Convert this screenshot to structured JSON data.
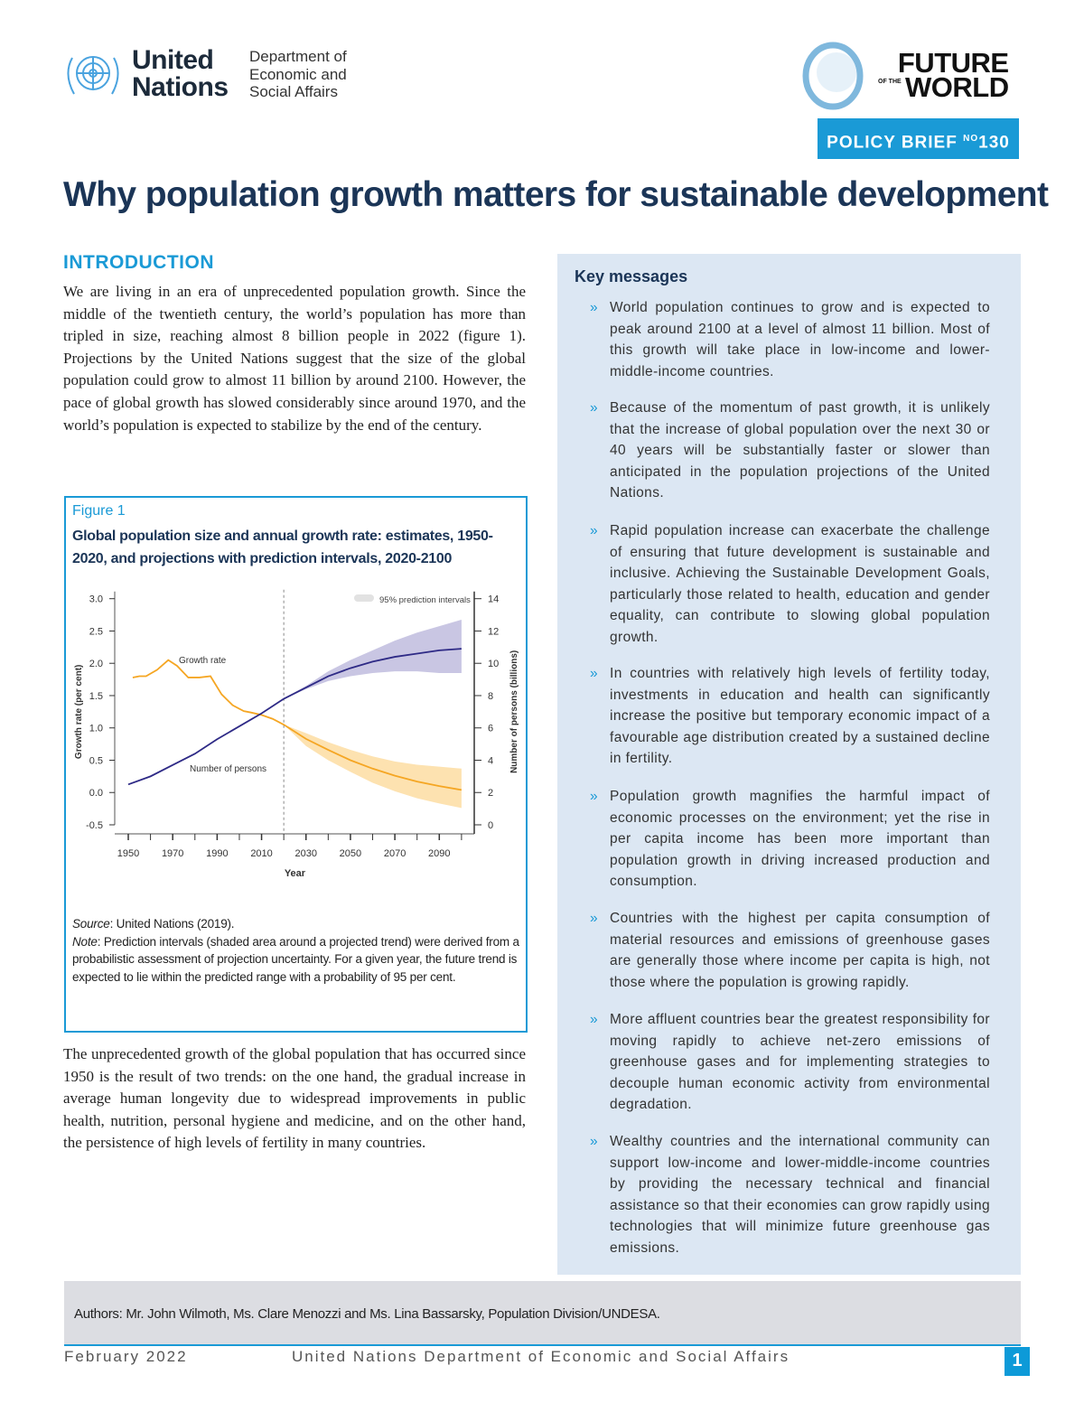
{
  "header": {
    "un_logo_text": [
      "United",
      "Nations"
    ],
    "department": [
      "Department of",
      "Economic and",
      "Social Affairs"
    ],
    "fow_logo": {
      "line1": "FUTURE",
      "of_the": "OF THE",
      "line2": "WORLD"
    },
    "policy_brief": {
      "label": "POLICY BRIEF",
      "no": "NO",
      "number": "130"
    },
    "brand_color": "#1a9ad6",
    "title_color": "#1b3557"
  },
  "title": "Why population growth matters for sustainable development",
  "introduction": {
    "heading": "INTRODUCTION",
    "paragraph1": "We are living in an era of unprecedented population growth. Since the middle of the twentieth century, the world’s population has more than tripled in size, reaching almost 8 billion people in 2022 (figure 1). Projections by the United Nations suggest that the size of the global population could grow to almost 11 billion by around 2100. However, the pace of global growth has slowed considerably since around 1970, and the world’s population is expected to stabilize by the end of the century.",
    "paragraph2": "The unprecedented growth of the global population that has occurred since 1950 is the result of two trends: on the one hand, the gradual increase in average human longevity due to widespread improvements in public health, nutrition, personal hygiene and medicine, and on the other hand, the persistence of high levels of fertility in many countries."
  },
  "figure": {
    "label": "Figure 1",
    "title": "Global population size and annual growth rate: estimates, 1950- 2020, and projections with prediction intervals, 2020-2100",
    "source_label": "Source",
    "source": ": United Nations (2019).",
    "note_label": "Note",
    "note": ": Prediction intervals (shaded area around a projected trend) were derived from a probabilistic assessment of projection uncertainty. For a given year, the future trend is expected to lie within the predicted range with a probability of 95 per cent."
  },
  "chart_data": {
    "type": "line",
    "xlabel": "Year",
    "ylabel_left": "Growth rate (per cent)",
    "ylabel_right": "Number of persons (billions)",
    "xlim": [
      1950,
      2100
    ],
    "ylim_left": [
      -0.5,
      3.0
    ],
    "ylim_right": [
      0,
      14
    ],
    "x_ticks": [
      1950,
      1970,
      1990,
      2010,
      2030,
      2050,
      2070,
      2090
    ],
    "y_ticks_left": [
      "3.0",
      "2.5",
      "2.0",
      "1.5",
      "1.0",
      "0.5",
      "0.0",
      "-0.5"
    ],
    "y_ticks_right": [
      14,
      12,
      10,
      8,
      6,
      4,
      2,
      0
    ],
    "projection_start": 2020,
    "legend": {
      "label": "95% prediction intervals",
      "position": "top-right"
    },
    "series": [
      {
        "name": "Growth rate",
        "axis": "left",
        "color": "#f5a623",
        "band_color": "#fde2b0",
        "x": [
          1952,
          1955,
          1958,
          1963,
          1968,
          1972,
          1977,
          1982,
          1987,
          1992,
          1997,
          2002,
          2005,
          2010,
          2015,
          2020,
          2030,
          2040,
          2050,
          2060,
          2070,
          2080,
          2090,
          2100
        ],
        "y": [
          1.78,
          1.8,
          1.8,
          1.9,
          2.05,
          1.96,
          1.78,
          1.78,
          1.8,
          1.52,
          1.35,
          1.26,
          1.24,
          1.2,
          1.14,
          1.05,
          0.83,
          0.66,
          0.5,
          0.37,
          0.26,
          0.17,
          0.1,
          0.04
        ],
        "interval": {
          "x": [
            2020,
            2030,
            2040,
            2050,
            2060,
            2070,
            2080,
            2090,
            2100
          ],
          "lower": [
            1.05,
            0.72,
            0.5,
            0.32,
            0.15,
            0.02,
            -0.09,
            -0.17,
            -0.24
          ],
          "upper": [
            1.05,
            0.92,
            0.78,
            0.66,
            0.56,
            0.48,
            0.43,
            0.4,
            0.37
          ]
        }
      },
      {
        "name": "Number of persons",
        "axis": "right",
        "color": "#2e2a86",
        "band_color": "#c9c6e3",
        "x": [
          1950,
          1960,
          1970,
          1980,
          1990,
          2000,
          2010,
          2020,
          2030,
          2040,
          2050,
          2060,
          2070,
          2080,
          2090,
          2100
        ],
        "y": [
          2.5,
          3.0,
          3.7,
          4.4,
          5.3,
          6.1,
          6.9,
          7.8,
          8.5,
          9.2,
          9.7,
          10.1,
          10.4,
          10.6,
          10.8,
          10.9
        ],
        "interval": {
          "x": [
            2020,
            2030,
            2040,
            2050,
            2060,
            2070,
            2080,
            2090,
            2100
          ],
          "lower": [
            7.8,
            8.4,
            8.9,
            9.2,
            9.4,
            9.5,
            9.5,
            9.4,
            9.4
          ],
          "upper": [
            7.8,
            8.6,
            9.5,
            10.2,
            10.8,
            11.4,
            11.9,
            12.3,
            12.7
          ]
        }
      }
    ]
  },
  "key_messages": {
    "heading": "Key messages",
    "bullet": "»",
    "items": [
      "World population continues to grow and is expected to peak around 2100 at a level of almost 11 billion. Most of this growth will take place in low-income and lower-middle-income countries.",
      "Because of the momentum of past growth, it is unlikely that the increase of global population over the next 30 or 40 years will be substantially faster or slower than anticipated in the population projections of the United Nations.",
      "Rapid population increase can exacerbate the challenge of ensuring that future development is sustainable and inclusive. Achieving the Sustainable Development Goals, particularly those related to health, education and gender equality, can contribute to slowing global population growth.",
      "In countries with relatively high levels of fertility today, investments in education and health can significantly increase the positive but temporary economic impact of a favourable age distribution created by a sustained decline in fertility.",
      "Population growth magnifies the harmful impact of economic processes on the environment; yet the rise in per capita income has been more important than population growth in driving increased production and consumption.",
      "Countries with the highest per capita consumption of material resources and emissions of greenhouse gases are generally those where income per capita is high, not those where the population is growing rapidly.",
      "More affluent countries bear the greatest responsibility for moving rapidly to achieve net-zero emissions of greenhouse gases and for implementing strategies to decouple human economic activity from environmental degradation.",
      "Wealthy countries and the international community can support low-income and lower-middle-income countries by providing the necessary technical and financial assistance so that their economies can grow rapidly using technologies that will minimize future greenhouse gas emissions."
    ]
  },
  "authors": "Authors: Mr. John Wilmoth, Ms. Clare Menozzi and Ms. Lina Bassarsky, Population Division/UNDESA.",
  "footer": {
    "date": "February 2022",
    "organization": "United Nations Department of Economic and Social Affairs",
    "page": "1"
  }
}
